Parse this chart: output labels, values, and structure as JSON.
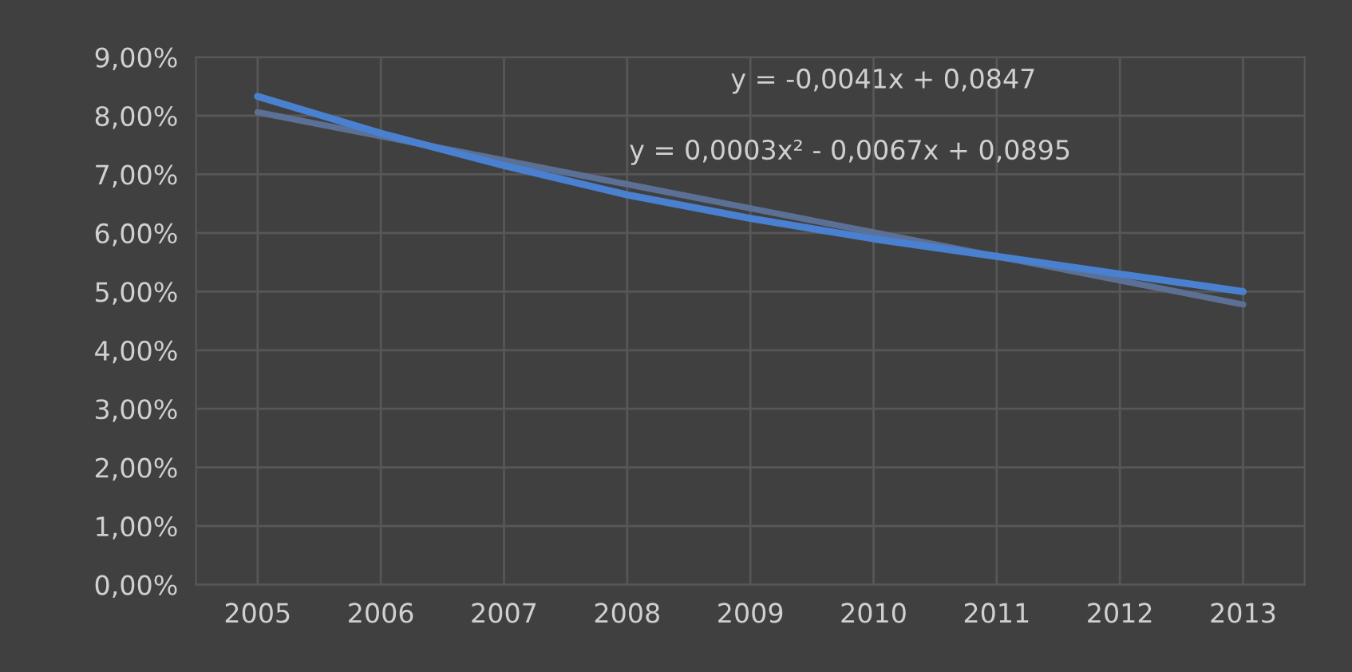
{
  "chart_data": {
    "type": "line",
    "categories": [
      "2005",
      "2006",
      "2007",
      "2008",
      "2009",
      "2010",
      "2011",
      "2012",
      "2013"
    ],
    "series": [
      {
        "color": "#5b7094",
        "values": [
          8.06,
          7.65,
          7.24,
          6.83,
          6.42,
          6.01,
          5.6,
          5.19,
          4.78
        ]
      },
      {
        "color": "#4a80d0",
        "values": [
          8.33,
          7.7,
          7.15,
          6.65,
          6.25,
          5.9,
          5.6,
          5.3,
          5.0
        ]
      }
    ],
    "ylim": [
      0,
      9
    ],
    "yticks": [
      {
        "value": 0,
        "label": "0,00%"
      },
      {
        "value": 1,
        "label": "1,00%"
      },
      {
        "value": 2,
        "label": "2,00%"
      },
      {
        "value": 3,
        "label": "3,00%"
      },
      {
        "value": 4,
        "label": "4,00%"
      },
      {
        "value": 5,
        "label": "5,00%"
      },
      {
        "value": 6,
        "label": "6,00%"
      },
      {
        "value": 7,
        "label": "7,00%"
      },
      {
        "value": 8,
        "label": "8,00%"
      },
      {
        "value": 9,
        "label": "9,00%"
      }
    ],
    "grid": true,
    "legend": false,
    "marker": "none",
    "line_style": "solid",
    "annotations": [
      "y = -0,0041x + 0,0847",
      "y = 0,0003x² - 0,0067x + 0,0895"
    ]
  }
}
